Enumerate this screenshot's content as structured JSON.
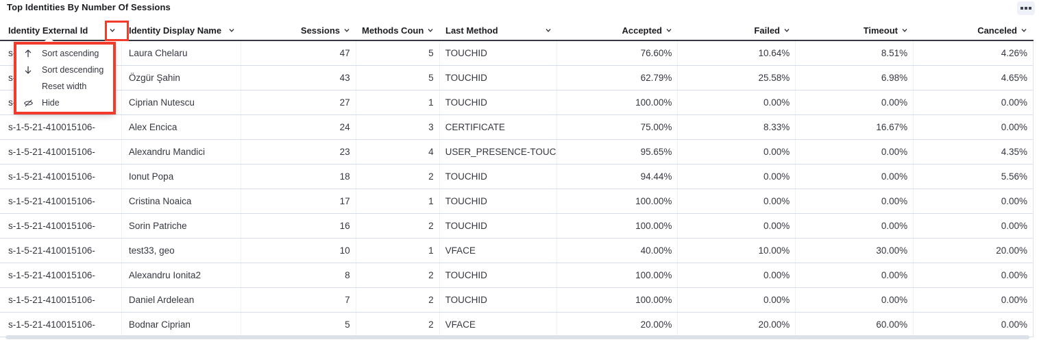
{
  "panel": {
    "title": "Top Identities By Number Of Sessions",
    "options_icon": "boxes-horizontal-icon"
  },
  "grid": {
    "columns": [
      {
        "key": "identity-external-id",
        "label": "Identity External Id",
        "align": "left"
      },
      {
        "key": "identity-display-name",
        "label": "Identity Display Name",
        "align": "left"
      },
      {
        "key": "sessions",
        "label": "Sessions",
        "align": "right"
      },
      {
        "key": "methods-count",
        "label": "Methods Count",
        "align": "right"
      },
      {
        "key": "last-method",
        "label": "Last Method",
        "align": "left"
      },
      {
        "key": "accepted",
        "label": "Accepted",
        "align": "right"
      },
      {
        "key": "failed",
        "label": "Failed",
        "align": "right"
      },
      {
        "key": "timeout",
        "label": "Timeout",
        "align": "right"
      },
      {
        "key": "canceled",
        "label": "Canceled",
        "align": "right"
      }
    ],
    "rows": [
      [
        "s-1-5-21-410015106-",
        "Laura Chelaru",
        "47",
        "5",
        "TOUCHID",
        "76.60%",
        "10.64%",
        "8.51%",
        "4.26%"
      ],
      [
        "s-1-5-21-410015106-",
        "Özgür Şahin",
        "43",
        "5",
        "TOUCHID",
        "62.79%",
        "25.58%",
        "6.98%",
        "4.65%"
      ],
      [
        "s-1-5-21-410015106-",
        "Ciprian Nutescu",
        "27",
        "1",
        "TOUCHID",
        "100.00%",
        "0.00%",
        "0.00%",
        "0.00%"
      ],
      [
        "s-1-5-21-410015106-",
        "Alex Encica",
        "24",
        "3",
        "CERTIFICATE",
        "75.00%",
        "8.33%",
        "16.67%",
        "0.00%"
      ],
      [
        "s-1-5-21-410015106-",
        "Alexandru Mandici",
        "23",
        "4",
        "USER_PRESENCE-TOUC",
        "95.65%",
        "0.00%",
        "0.00%",
        "4.35%"
      ],
      [
        "s-1-5-21-410015106-",
        "Ionut Popa",
        "18",
        "2",
        "TOUCHID",
        "94.44%",
        "0.00%",
        "0.00%",
        "5.56%"
      ],
      [
        "s-1-5-21-410015106-",
        "Cristina Noaica",
        "17",
        "1",
        "TOUCHID",
        "100.00%",
        "0.00%",
        "0.00%",
        "0.00%"
      ],
      [
        "s-1-5-21-410015106-",
        "Sorin Patriche",
        "16",
        "2",
        "TOUCHID",
        "100.00%",
        "0.00%",
        "0.00%",
        "0.00%"
      ],
      [
        "s-1-5-21-410015106-",
        "test33, geo",
        "10",
        "1",
        "VFACE",
        "40.00%",
        "10.00%",
        "30.00%",
        "20.00%"
      ],
      [
        "s-1-5-21-410015106-",
        "Alexandru Ionita2",
        "8",
        "2",
        "TOUCHID",
        "100.00%",
        "0.00%",
        "0.00%",
        "0.00%"
      ],
      [
        "s-1-5-21-410015106-",
        "Daniel Ardelean",
        "7",
        "2",
        "TOUCHID",
        "100.00%",
        "0.00%",
        "0.00%",
        "0.00%"
      ],
      [
        "s-1-5-21-410015106-",
        "Bodnar Ciprian",
        "5",
        "2",
        "VFACE",
        "20.00%",
        "20.00%",
        "60.00%",
        "0.00%"
      ]
    ]
  },
  "column_menu": {
    "for_column": "Identity External Id",
    "items": [
      {
        "icon": "sort-ascending-icon",
        "label": "Sort ascending"
      },
      {
        "icon": "sort-descending-icon",
        "label": "Sort descending"
      },
      {
        "icon": "",
        "label": "Reset width"
      },
      {
        "icon": "eye-closed-icon",
        "label": "Hide"
      }
    ]
  },
  "annotations": {
    "highlight_color": "#f23b2a",
    "highlighted": [
      "column-chevron-button",
      "column-actions-menu"
    ]
  }
}
